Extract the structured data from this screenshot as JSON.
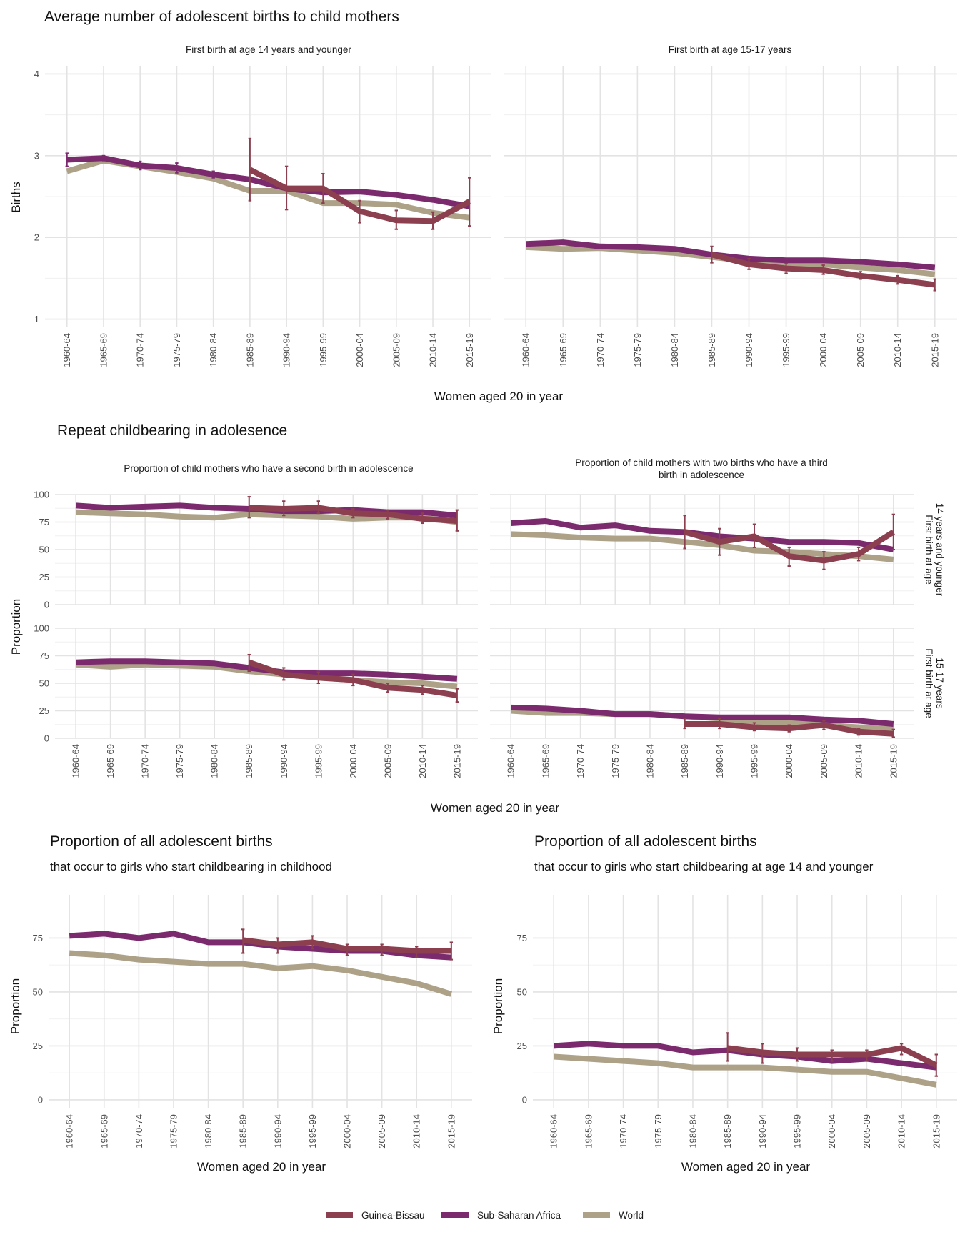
{
  "colors": {
    "Guinea-Bissau": "#8b3f4f",
    "Sub-Saharan Africa": "#7b2a6d",
    "World": "#ada188"
  },
  "legend": {
    "position": "bottom",
    "items": [
      "Guinea-Bissau",
      "Sub-Saharan Africa",
      "World"
    ]
  },
  "categories": [
    "1960-64",
    "1965-69",
    "1970-74",
    "1975-79",
    "1980-84",
    "1985-89",
    "1990-94",
    "1995-99",
    "2000-04",
    "2005-09",
    "2010-14",
    "2015-19"
  ],
  "chart_data": [
    {
      "type": "line",
      "title": "Average number of adolescent births to child mothers",
      "xlabel": "Women aged 20 in year",
      "ylabel": "Births",
      "ylim": [
        0.9,
        4.1
      ],
      "yticks": [
        1,
        2,
        3,
        4
      ],
      "grid": true,
      "panels": [
        {
          "strip": "First birth at age 14 years and younger",
          "series": [
            {
              "name": "World",
              "values": [
                2.81,
                2.94,
                2.87,
                2.8,
                2.72,
                2.57,
                2.57,
                2.42,
                2.42,
                2.4,
                2.3,
                2.24
              ]
            },
            {
              "name": "Sub-Saharan Africa",
              "values": [
                2.95,
                2.97,
                2.88,
                2.85,
                2.77,
                2.71,
                2.6,
                2.55,
                2.56,
                2.52,
                2.46,
                2.38
              ],
              "err": [
                0.08,
                0.03,
                0.05,
                0.06,
                0.04,
                0,
                0,
                0,
                0,
                0,
                0,
                0
              ]
            },
            {
              "name": "Guinea-Bissau",
              "values": [
                null,
                null,
                null,
                null,
                null,
                2.83,
                2.6,
                2.6,
                2.32,
                2.21,
                2.2,
                2.44
              ],
              "lo": [
                null,
                null,
                null,
                null,
                null,
                2.45,
                2.34,
                2.42,
                2.18,
                2.1,
                2.1,
                2.14
              ],
              "hi": [
                null,
                null,
                null,
                null,
                null,
                3.21,
                2.87,
                2.78,
                2.45,
                2.33,
                2.31,
                2.73
              ]
            }
          ]
        },
        {
          "strip": "First birth at age 15-17 years",
          "series": [
            {
              "name": "World",
              "values": [
                1.88,
                1.86,
                1.87,
                1.84,
                1.81,
                1.76,
                1.71,
                1.68,
                1.67,
                1.63,
                1.6,
                1.55
              ]
            },
            {
              "name": "Sub-Saharan Africa",
              "values": [
                1.92,
                1.94,
                1.89,
                1.88,
                1.86,
                1.79,
                1.74,
                1.72,
                1.72,
                1.7,
                1.67,
                1.63
              ]
            },
            {
              "name": "Guinea-Bissau",
              "values": [
                null,
                null,
                null,
                null,
                null,
                1.79,
                1.67,
                1.62,
                1.6,
                1.53,
                1.48,
                1.42
              ],
              "lo": [
                null,
                null,
                null,
                null,
                null,
                1.69,
                1.61,
                1.56,
                1.55,
                1.49,
                1.43,
                1.35
              ],
              "hi": [
                null,
                null,
                null,
                null,
                null,
                1.89,
                1.74,
                1.68,
                1.66,
                1.58,
                1.53,
                1.49
              ]
            }
          ]
        }
      ]
    },
    {
      "type": "line",
      "title": "Repeat childbearing in adolesence",
      "xlabel": "Women aged 20 in year",
      "ylabel": "Proportion",
      "ylim": [
        0,
        100
      ],
      "yticks": [
        0,
        25,
        50,
        75,
        100
      ],
      "grid": true,
      "columns": [
        "Proportion of child mothers who have a second birth in adolescence",
        "Proportion of child mothers with two births who have a third birth in adolescence"
      ],
      "rows": [
        "First birth at age 14 years and younger",
        "First birth at age 15-17 years"
      ],
      "panels": [
        {
          "series": [
            {
              "name": "World",
              "values": [
                84,
                83,
                82,
                80,
                79,
                82,
                81,
                80,
                78,
                79,
                79,
                75
              ]
            },
            {
              "name": "Sub-Saharan Africa",
              "values": [
                90,
                88,
                89,
                90,
                88,
                87,
                85,
                85,
                86,
                84,
                84,
                81
              ]
            },
            {
              "name": "Guinea-Bissau",
              "values": [
                null,
                null,
                null,
                null,
                null,
                88,
                87,
                88,
                83,
                82,
                78,
                76
              ],
              "lo": [
                null,
                null,
                null,
                null,
                null,
                79,
                81,
                83,
                79,
                78,
                74,
                67
              ],
              "hi": [
                null,
                null,
                null,
                null,
                null,
                98,
                94,
                94,
                87,
                86,
                83,
                86
              ]
            }
          ]
        },
        {
          "series": [
            {
              "name": "World",
              "values": [
                64,
                63,
                61,
                60,
                60,
                57,
                54,
                49,
                48,
                46,
                44,
                41
              ]
            },
            {
              "name": "Sub-Saharan Africa",
              "values": [
                74,
                76,
                70,
                72,
                67,
                66,
                62,
                60,
                57,
                57,
                56,
                50
              ]
            },
            {
              "name": "Guinea-Bissau",
              "values": [
                null,
                null,
                null,
                null,
                null,
                66,
                57,
                62,
                44,
                40,
                46,
                66
              ],
              "lo": [
                null,
                null,
                null,
                null,
                null,
                51,
                45,
                52,
                35,
                32,
                40,
                50
              ],
              "hi": [
                null,
                null,
                null,
                null,
                null,
                81,
                69,
                73,
                52,
                48,
                52,
                82
              ]
            }
          ]
        },
        {
          "series": [
            {
              "name": "World",
              "values": [
                67,
                65,
                67,
                66,
                65,
                61,
                58,
                55,
                53,
                51,
                50,
                47
              ]
            },
            {
              "name": "Sub-Saharan Africa",
              "values": [
                69,
                70,
                70,
                69,
                68,
                64,
                60,
                59,
                59,
                58,
                56,
                54
              ]
            },
            {
              "name": "Guinea-Bissau",
              "values": [
                null,
                null,
                null,
                null,
                null,
                69,
                58,
                55,
                53,
                46,
                44,
                39
              ],
              "lo": [
                null,
                null,
                null,
                null,
                null,
                61,
                53,
                50,
                48,
                42,
                40,
                33
              ],
              "hi": [
                null,
                null,
                null,
                null,
                null,
                76,
                64,
                60,
                58,
                50,
                48,
                45
              ]
            }
          ]
        },
        {
          "series": [
            {
              "name": "World",
              "values": [
                25,
                23,
                23,
                22,
                22,
                20,
                18,
                15,
                14,
                12,
                10,
                9
              ]
            },
            {
              "name": "Sub-Saharan Africa",
              "values": [
                28,
                27,
                25,
                22,
                22,
                20,
                19,
                19,
                19,
                17,
                16,
                13
              ]
            },
            {
              "name": "Guinea-Bissau",
              "values": [
                null,
                null,
                null,
                null,
                null,
                13,
                13,
                10,
                9,
                12,
                6,
                4
              ],
              "lo": [
                null,
                null,
                null,
                null,
                null,
                9,
                9,
                7,
                6,
                8,
                3,
                1
              ],
              "hi": [
                null,
                null,
                null,
                null,
                null,
                18,
                18,
                14,
                12,
                16,
                9,
                8
              ]
            }
          ]
        }
      ]
    },
    {
      "type": "line",
      "title": "Proportion of all adolescent births",
      "subtitle": "that occur to girls who start childbearing in childhood",
      "xlabel": "Women aged 20 in year",
      "ylabel": "Proportion",
      "ylim": [
        -4,
        95
      ],
      "yticks": [
        0,
        25,
        50,
        75
      ],
      "grid": true,
      "series": [
        {
          "name": "World",
          "values": [
            68,
            67,
            65,
            64,
            63,
            63,
            61,
            62,
            60,
            57,
            54,
            49
          ]
        },
        {
          "name": "Sub-Saharan Africa",
          "values": [
            76,
            77,
            75,
            77,
            73,
            73,
            71,
            70,
            69,
            69,
            67,
            66
          ]
        },
        {
          "name": "Guinea-Bissau",
          "values": [
            null,
            null,
            null,
            null,
            null,
            74,
            72,
            73,
            70,
            70,
            69,
            69
          ],
          "lo": [
            null,
            null,
            null,
            null,
            null,
            68,
            68,
            70,
            67,
            67,
            66,
            65
          ],
          "hi": [
            null,
            null,
            null,
            null,
            null,
            79,
            75,
            76,
            72,
            72,
            71,
            73
          ]
        }
      ]
    },
    {
      "type": "line",
      "title": "Proportion of all adolescent births",
      "subtitle": "that occur to girls who start childbearing at age 14 and younger",
      "xlabel": "Women aged 20 in year",
      "ylabel": "Proportion",
      "ylim": [
        -4,
        95
      ],
      "yticks": [
        0,
        25,
        50,
        75
      ],
      "grid": true,
      "series": [
        {
          "name": "World",
          "values": [
            20,
            19,
            18,
            17,
            15,
            15,
            15,
            14,
            13,
            13,
            10,
            7
          ]
        },
        {
          "name": "Sub-Saharan Africa",
          "values": [
            25,
            26,
            25,
            25,
            22,
            23,
            21,
            20,
            18,
            19,
            17,
            15
          ]
        },
        {
          "name": "Guinea-Bissau",
          "values": [
            null,
            null,
            null,
            null,
            null,
            24,
            22,
            21,
            21,
            21,
            24,
            16
          ],
          "lo": [
            null,
            null,
            null,
            null,
            null,
            18,
            17,
            18,
            18,
            18,
            21,
            11
          ],
          "hi": [
            null,
            null,
            null,
            null,
            null,
            31,
            26,
            24,
            23,
            23,
            26,
            21
          ]
        }
      ]
    }
  ]
}
